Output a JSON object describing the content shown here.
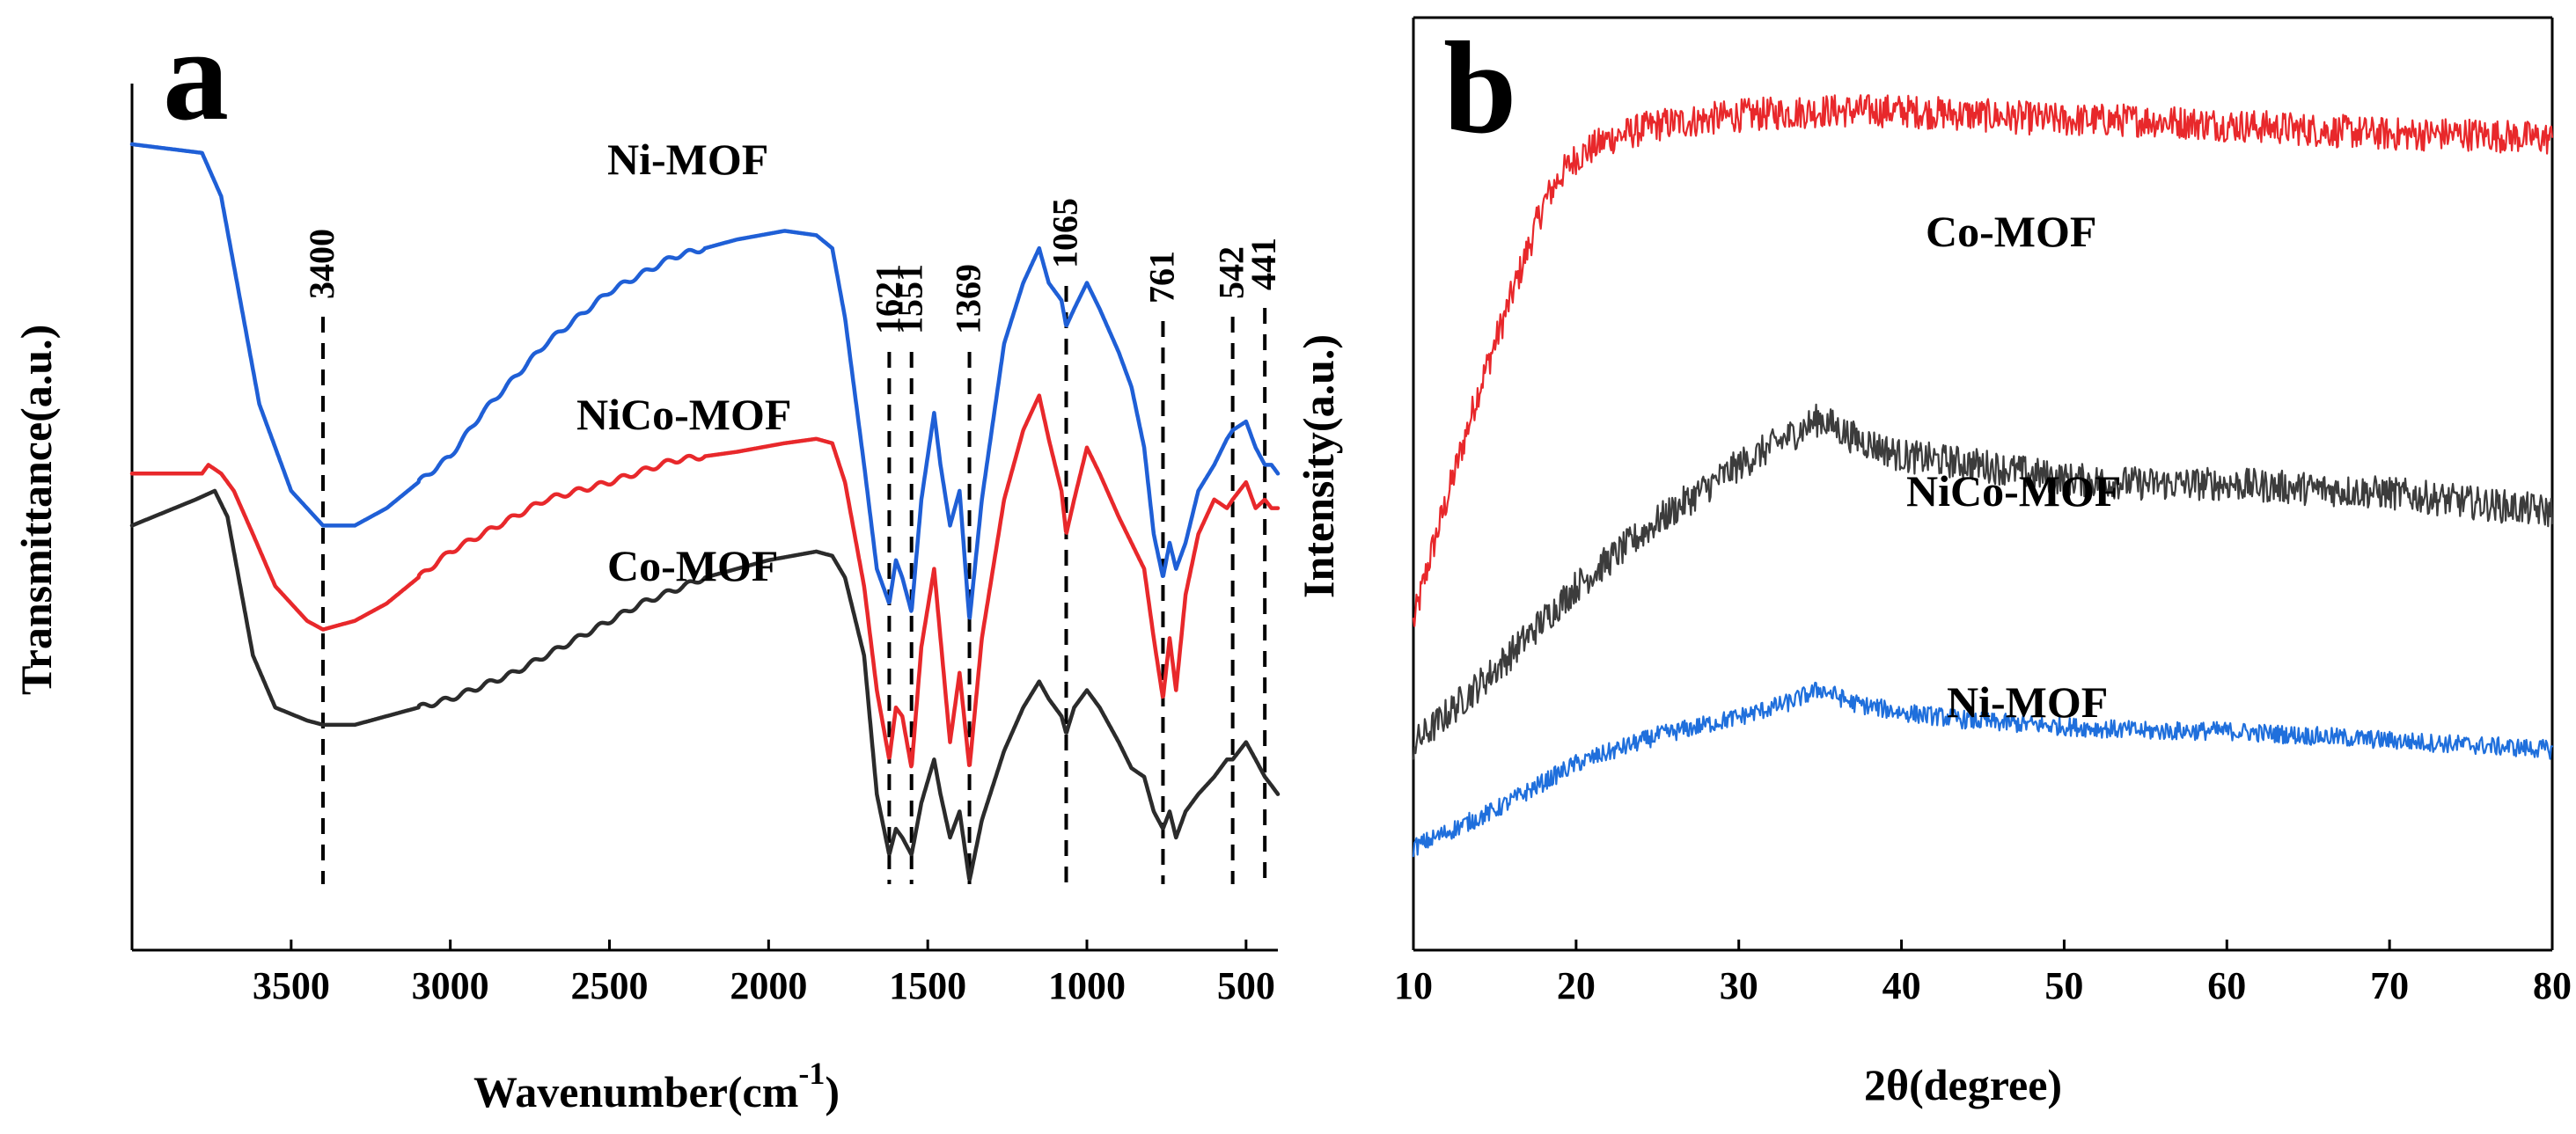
{
  "chart_data": [
    {
      "panel": "a",
      "type": "line",
      "title": "",
      "xlabel": "Wavenumber(cm",
      "xlabel_sup": "-1",
      "xlabel_close": ")",
      "ylabel": "Transmittance(a.u.)",
      "xlim": [
        4000,
        400
      ],
      "xticks": [
        3500,
        3000,
        2500,
        2000,
        1500,
        1000,
        500
      ],
      "xtick_labels": [
        "3500",
        "3000",
        "2500",
        "2000",
        "1500",
        "1000",
        "500"
      ],
      "ylim": [
        0,
        1
      ],
      "yticks": [],
      "grid": false,
      "legend": "labels-inline",
      "peaks": [
        {
          "wavenumber": 3400,
          "label": "3400"
        },
        {
          "wavenumber": 1621,
          "label": "1621"
        },
        {
          "wavenumber": 1551,
          "label": "1551"
        },
        {
          "wavenumber": 1369,
          "label": "1369"
        },
        {
          "wavenumber": 1065,
          "label": "1065"
        },
        {
          "wavenumber": 761,
          "label": "761"
        },
        {
          "wavenumber": 542,
          "label": "542"
        },
        {
          "wavenumber": 441,
          "label": "441"
        }
      ],
      "series": [
        {
          "name": "Ni-MOF",
          "color": "#1f5fd6",
          "x": [
            4000,
            3780,
            3720,
            3660,
            3600,
            3500,
            3400,
            3300,
            3200,
            3100,
            3000,
            2900,
            2800,
            2700,
            2500,
            2300,
            2100,
            1950,
            1850,
            1800,
            1760,
            1700,
            1660,
            1621,
            1600,
            1580,
            1551,
            1520,
            1480,
            1460,
            1430,
            1400,
            1369,
            1330,
            1260,
            1200,
            1150,
            1120,
            1080,
            1065,
            1040,
            1000,
            960,
            900,
            860,
            820,
            790,
            761,
            740,
            720,
            690,
            650,
            600,
            560,
            542,
            500,
            470,
            441,
            420,
            400
          ],
          "y": [
            0.93,
            0.92,
            0.87,
            0.75,
            0.63,
            0.53,
            0.49,
            0.49,
            0.51,
            0.54,
            0.57,
            0.62,
            0.66,
            0.7,
            0.76,
            0.8,
            0.82,
            0.83,
            0.825,
            0.81,
            0.73,
            0.56,
            0.44,
            0.4,
            0.45,
            0.43,
            0.39,
            0.52,
            0.62,
            0.56,
            0.49,
            0.53,
            0.38,
            0.52,
            0.7,
            0.77,
            0.81,
            0.77,
            0.75,
            0.72,
            0.74,
            0.77,
            0.74,
            0.69,
            0.65,
            0.58,
            0.48,
            0.43,
            0.47,
            0.44,
            0.47,
            0.53,
            0.56,
            0.59,
            0.6,
            0.61,
            0.58,
            0.56,
            0.56,
            0.55
          ]
        },
        {
          "name": "NiCo-MOF",
          "color": "#e8282b",
          "x": [
            4000,
            3780,
            3760,
            3720,
            3680,
            3620,
            3550,
            3450,
            3400,
            3300,
            3200,
            3100,
            3000,
            2900,
            2800,
            2700,
            2500,
            2300,
            2100,
            1950,
            1850,
            1800,
            1760,
            1700,
            1660,
            1621,
            1600,
            1580,
            1551,
            1520,
            1480,
            1460,
            1430,
            1400,
            1369,
            1330,
            1260,
            1200,
            1150,
            1120,
            1080,
            1065,
            1040,
            1000,
            960,
            900,
            860,
            820,
            790,
            761,
            740,
            720,
            690,
            650,
            600,
            560,
            542,
            500,
            470,
            441,
            420,
            400
          ],
          "y": [
            0.55,
            0.55,
            0.56,
            0.55,
            0.53,
            0.48,
            0.42,
            0.38,
            0.37,
            0.38,
            0.4,
            0.43,
            0.46,
            0.48,
            0.5,
            0.52,
            0.54,
            0.565,
            0.575,
            0.585,
            0.59,
            0.585,
            0.54,
            0.42,
            0.3,
            0.22,
            0.28,
            0.27,
            0.21,
            0.35,
            0.44,
            0.36,
            0.24,
            0.32,
            0.21,
            0.36,
            0.52,
            0.6,
            0.64,
            0.59,
            0.53,
            0.48,
            0.52,
            0.58,
            0.55,
            0.5,
            0.47,
            0.44,
            0.36,
            0.29,
            0.36,
            0.3,
            0.41,
            0.48,
            0.52,
            0.51,
            0.52,
            0.54,
            0.51,
            0.52,
            0.51,
            0.51
          ]
        },
        {
          "name": "Co-MOF",
          "color": "#2b2b2b",
          "x": [
            4000,
            3800,
            3740,
            3700,
            3660,
            3620,
            3550,
            3450,
            3400,
            3300,
            3200,
            3000,
            2800,
            2600,
            2400,
            2200,
            2000,
            1850,
            1800,
            1760,
            1700,
            1660,
            1621,
            1600,
            1580,
            1551,
            1520,
            1480,
            1460,
            1430,
            1400,
            1369,
            1330,
            1260,
            1200,
            1150,
            1120,
            1080,
            1065,
            1040,
            1000,
            960,
            900,
            860,
            820,
            790,
            761,
            740,
            720,
            690,
            650,
            600,
            560,
            542,
            500,
            470,
            441,
            420,
            400
          ],
          "y": [
            0.49,
            0.52,
            0.53,
            0.5,
            0.42,
            0.34,
            0.28,
            0.265,
            0.26,
            0.26,
            0.27,
            0.29,
            0.32,
            0.36,
            0.4,
            0.43,
            0.45,
            0.46,
            0.455,
            0.43,
            0.34,
            0.18,
            0.11,
            0.14,
            0.13,
            0.11,
            0.17,
            0.22,
            0.18,
            0.13,
            0.16,
            0.08,
            0.15,
            0.23,
            0.28,
            0.31,
            0.29,
            0.27,
            0.25,
            0.28,
            0.3,
            0.28,
            0.24,
            0.21,
            0.2,
            0.16,
            0.14,
            0.16,
            0.13,
            0.16,
            0.18,
            0.2,
            0.22,
            0.22,
            0.24,
            0.22,
            0.2,
            0.19,
            0.18
          ]
        }
      ]
    },
    {
      "panel": "b",
      "type": "line",
      "title": "",
      "xlabel": "2θ(degree)",
      "ylabel": "Intensity(a.u.)",
      "xlim": [
        10,
        80
      ],
      "xticks": [
        10,
        20,
        30,
        40,
        50,
        60,
        70,
        80
      ],
      "xtick_labels": [
        "10",
        "20",
        "30",
        "40",
        "50",
        "60",
        "70",
        "80"
      ],
      "ylim": [
        0,
        1
      ],
      "yticks": [],
      "grid": false,
      "legend": "labels-inline",
      "series": [
        {
          "name": "Co-MOF",
          "color": "#e8282b",
          "noise": 0.018,
          "x": [
            10,
            11,
            12,
            13,
            14,
            15,
            16,
            17,
            18,
            19,
            20,
            22,
            25,
            30,
            35,
            40,
            45,
            50,
            55,
            60,
            65,
            70,
            75,
            80
          ],
          "y": [
            0.35,
            0.42,
            0.48,
            0.54,
            0.6,
            0.65,
            0.7,
            0.75,
            0.8,
            0.83,
            0.85,
            0.87,
            0.885,
            0.895,
            0.9,
            0.9,
            0.895,
            0.89,
            0.89,
            0.885,
            0.88,
            0.875,
            0.875,
            0.87
          ]
        },
        {
          "name": "NiCo-MOF",
          "color": "#3c3c3c",
          "noise": 0.018,
          "x": [
            10,
            15,
            20,
            25,
            30,
            33,
            35,
            37,
            40,
            45,
            50,
            55,
            60,
            65,
            70,
            75,
            80
          ],
          "y": [
            0.22,
            0.3,
            0.39,
            0.46,
            0.52,
            0.55,
            0.57,
            0.55,
            0.53,
            0.52,
            0.505,
            0.5,
            0.5,
            0.495,
            0.49,
            0.48,
            0.47
          ]
        },
        {
          "name": "Ni-MOF",
          "color": "#1f6fdc",
          "noise": 0.01,
          "x": [
            10,
            15,
            20,
            25,
            30,
            33,
            35,
            37,
            40,
            45,
            50,
            55,
            60,
            65,
            70,
            75,
            80
          ],
          "y": [
            0.11,
            0.15,
            0.2,
            0.23,
            0.25,
            0.265,
            0.28,
            0.265,
            0.255,
            0.245,
            0.24,
            0.235,
            0.235,
            0.23,
            0.225,
            0.22,
            0.215
          ]
        }
      ]
    }
  ],
  "panel_a": {
    "letter": "a"
  },
  "panel_b": {
    "letter": "b"
  }
}
